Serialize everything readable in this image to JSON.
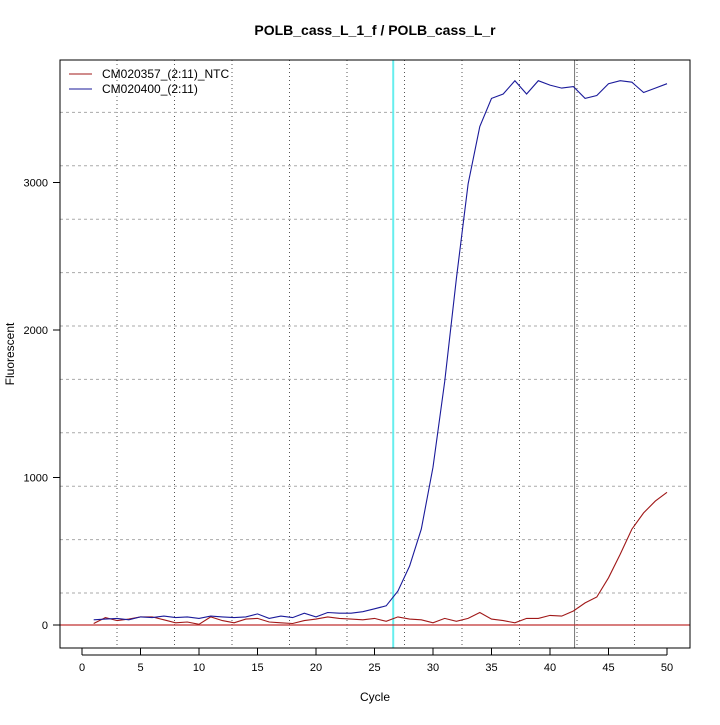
{
  "chart_data": {
    "type": "line",
    "title": "POLB_cass_L_1_f / POLB_cass_L_r",
    "xlabel": "Cycle",
    "ylabel": "Fluorescent",
    "xlim": [
      -2,
      52
    ],
    "ylim": [
      -150,
      4100
    ],
    "xticks": [
      0,
      5,
      10,
      15,
      20,
      25,
      30,
      35,
      40,
      45,
      50
    ],
    "yticks": [
      0,
      1000,
      2000,
      3000
    ],
    "grid": true,
    "legend_position": "top-left",
    "x": [
      1,
      2,
      3,
      4,
      5,
      6,
      7,
      8,
      9,
      10,
      11,
      12,
      13,
      14,
      15,
      16,
      17,
      18,
      19,
      20,
      21,
      22,
      23,
      24,
      25,
      26,
      27,
      28,
      29,
      30,
      31,
      32,
      33,
      34,
      35,
      36,
      37,
      38,
      39,
      40,
      41,
      42,
      43,
      44,
      45,
      46,
      47,
      48,
      49,
      50
    ],
    "series": [
      {
        "name": "CM020357_(2:11)_NTC",
        "color": "#a01818",
        "values": [
          10,
          50,
          30,
          40,
          55,
          55,
          35,
          15,
          20,
          5,
          55,
          30,
          15,
          40,
          45,
          20,
          15,
          10,
          30,
          40,
          55,
          45,
          40,
          35,
          45,
          25,
          55,
          40,
          35,
          15,
          45,
          25,
          45,
          85,
          40,
          30,
          15,
          45,
          45,
          65,
          60,
          95,
          150,
          190,
          320,
          480,
          650,
          760,
          840,
          900
        ]
      },
      {
        "name": "CM020400_(2:11)",
        "color": "#1a1a9a",
        "values": [
          35,
          40,
          45,
          35,
          55,
          50,
          60,
          50,
          55,
          45,
          60,
          55,
          50,
          55,
          75,
          45,
          60,
          50,
          80,
          55,
          85,
          80,
          80,
          90,
          110,
          130,
          230,
          400,
          650,
          1070,
          1650,
          2350,
          2990,
          3380,
          3570,
          3600,
          3690,
          3600,
          3690,
          3660,
          3640,
          3650,
          3570,
          3590,
          3670,
          3690,
          3680,
          3610,
          3640,
          3670
        ]
      }
    ],
    "threshold": {
      "value": 0,
      "color": "#c03030"
    },
    "vlines": [
      {
        "cycle": 26.6,
        "color": "#66eeee"
      },
      {
        "cycle": 42.1,
        "color": "#777777"
      }
    ]
  }
}
